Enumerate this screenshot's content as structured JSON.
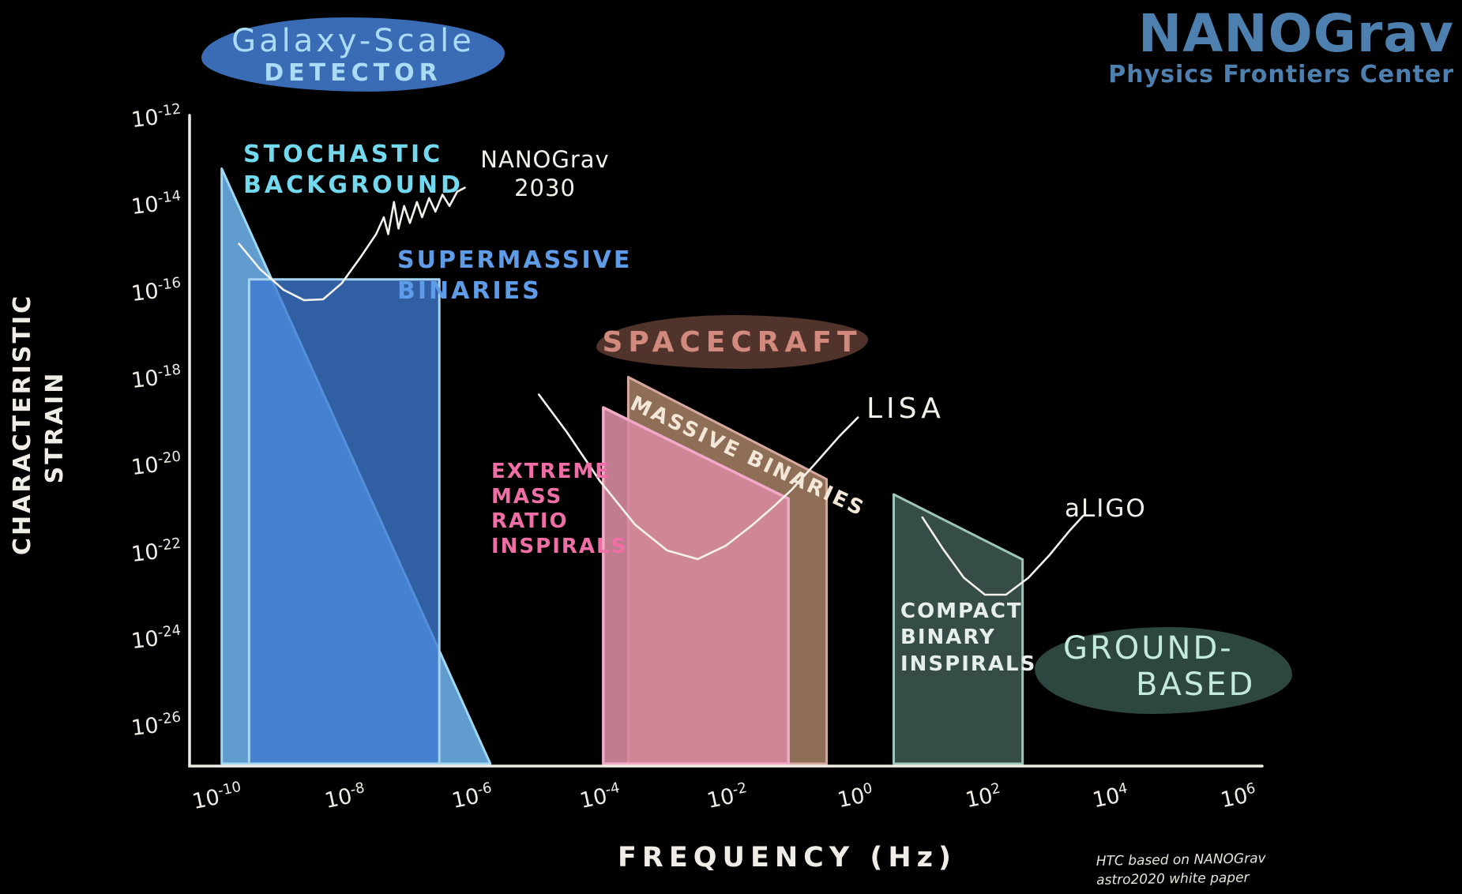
{
  "logo": {
    "title": "NANOGrav",
    "subtitle": "Physics Frontiers Center"
  },
  "labels": {
    "galaxy_scale_line1": "Galaxy-Scale",
    "galaxy_scale_line2": "DETECTOR",
    "stochastic_background": "STOCHASTIC\nBACKGROUND",
    "nanograv_2030": "NANOGrav\n2030",
    "supermassive_binaries": "SUPERMASSIVE\nBINARIES",
    "spacecraft": "SPACECRAFT",
    "massive_binaries": "MASSIVE BINARIES",
    "emri": "EXTREME\nMASS\nRATIO\nINSPIRALS",
    "lisa": "LISA",
    "aligo": "aLIGO",
    "compact_binary_inspirals": "COMPACT\nBINARY\nINSPIRALS",
    "ground_based_line1": "GROUND-",
    "ground_based_line2": "BASED",
    "ylabel": "CHARACTERISTIC\nSTRAIN",
    "xlabel": "FREQUENCY (Hz)",
    "credit": "HTC based on NANOGrav\nastro2020 white paper"
  },
  "chart_data": {
    "type": "area",
    "title": "Gravitational wave detector sensitivity: characteristic strain vs frequency",
    "xlabel": "FREQUENCY (Hz)",
    "ylabel": "CHARACTERISTIC STRAIN",
    "x_scale": "log",
    "y_scale": "log",
    "xlim_log": [
      -10,
      6
    ],
    "ylim_log": [
      -26.8,
      -12
    ],
    "grid": false,
    "x_tick_exponents": [
      -10,
      -8,
      -6,
      -4,
      -2,
      0,
      2,
      4,
      6
    ],
    "y_tick_exponents": [
      -12,
      -14,
      -16,
      -18,
      -20,
      -22,
      -24,
      -26
    ],
    "regions": [
      {
        "name": "stochastic-background",
        "label": "STOCHASTIC BACKGROUND",
        "detector_group": "Galaxy-Scale Detector",
        "fill": "#68a9e0",
        "fill_opacity": 0.92,
        "stroke": "#9fd8f2",
        "stroke_width": 3,
        "points": [
          [
            -9.93,
            -13.1
          ],
          [
            -5.72,
            -26.8
          ],
          [
            -9.93,
            -26.8
          ]
        ]
      },
      {
        "name": "supermassive-binaries",
        "label": "SUPERMASSIVE BINARIES",
        "detector_group": "Galaxy-Scale Detector",
        "fill": "#3f7ad2",
        "fill_opacity": 0.78,
        "stroke": "#a6d3f0",
        "stroke_width": 3,
        "points": [
          [
            -9.5,
            -15.65
          ],
          [
            -6.52,
            -15.65
          ],
          [
            -6.52,
            -26.8
          ],
          [
            -9.5,
            -26.8
          ]
        ]
      },
      {
        "name": "massive-binaries",
        "label": "MASSIVE BINARIES",
        "detector_group": "Spacecraft",
        "fill": "#97745c",
        "fill_opacity": 0.95,
        "stroke": "#d6a9a0",
        "stroke_width": 3,
        "points": [
          [
            -3.56,
            -17.9
          ],
          [
            -0.45,
            -20.25
          ],
          [
            -0.45,
            -26.8
          ],
          [
            -3.56,
            -26.8
          ]
        ]
      },
      {
        "name": "extreme-mass-ratio-inspirals",
        "label": "EXTREME MASS RATIO INSPIRALS",
        "detector_group": "Spacecraft",
        "fill": "#d6899e",
        "fill_opacity": 0.9,
        "stroke": "#f0a9c6",
        "stroke_width": 3.5,
        "points": [
          [
            -3.95,
            -18.6
          ],
          [
            -1.05,
            -20.7
          ],
          [
            -1.05,
            -26.8
          ],
          [
            -3.95,
            -26.8
          ]
        ]
      },
      {
        "name": "compact-binary-inspirals",
        "label": "COMPACT BINARY INSPIRALS",
        "detector_group": "Ground-Based",
        "fill": "#374f48",
        "fill_opacity": 0.97,
        "stroke": "#9ec6bb",
        "stroke_width": 3,
        "points": [
          [
            0.6,
            -20.6
          ],
          [
            2.62,
            -22.1
          ],
          [
            2.62,
            -26.8
          ],
          [
            0.6,
            -26.8
          ]
        ]
      }
    ],
    "curves": [
      {
        "name": "nanograv-2030",
        "label": "NANOGrav 2030",
        "color": "#f2f2ea",
        "points": [
          [
            -9.66,
            -14.83
          ],
          [
            -9.33,
            -15.41
          ],
          [
            -8.96,
            -15.89
          ],
          [
            -8.64,
            -16.13
          ],
          [
            -8.34,
            -16.11
          ],
          [
            -8.05,
            -15.74
          ],
          [
            -7.75,
            -15.13
          ],
          [
            -7.51,
            -14.61
          ],
          [
            -7.39,
            -14.22
          ],
          [
            -7.32,
            -14.61
          ],
          [
            -7.23,
            -13.87
          ],
          [
            -7.16,
            -14.48
          ],
          [
            -7.07,
            -13.96
          ],
          [
            -6.98,
            -14.35
          ],
          [
            -6.87,
            -13.87
          ],
          [
            -6.79,
            -14.22
          ],
          [
            -6.68,
            -13.78
          ],
          [
            -6.58,
            -14.09
          ],
          [
            -6.47,
            -13.7
          ],
          [
            -6.36,
            -13.96
          ],
          [
            -6.24,
            -13.63
          ],
          [
            -6.12,
            -13.54
          ]
        ]
      },
      {
        "name": "lisa",
        "label": "LISA",
        "color": "#f2f2ea",
        "points": [
          [
            -4.96,
            -18.3
          ],
          [
            -4.52,
            -19.17
          ],
          [
            -4.0,
            -20.3
          ],
          [
            -3.45,
            -21.3
          ],
          [
            -2.95,
            -21.89
          ],
          [
            -2.47,
            -22.09
          ],
          [
            -2.03,
            -21.78
          ],
          [
            -1.61,
            -21.3
          ],
          [
            -1.26,
            -20.85
          ],
          [
            -0.99,
            -20.48
          ],
          [
            -0.64,
            -19.91
          ],
          [
            -0.25,
            -19.26
          ],
          [
            0.04,
            -18.83
          ]
        ]
      },
      {
        "name": "aligo",
        "label": "aLIGO",
        "color": "#f2f2ea",
        "points": [
          [
            1.05,
            -21.13
          ],
          [
            1.38,
            -21.87
          ],
          [
            1.7,
            -22.52
          ],
          [
            2.03,
            -22.91
          ],
          [
            2.36,
            -22.91
          ],
          [
            2.71,
            -22.52
          ],
          [
            3.04,
            -22.0
          ],
          [
            3.36,
            -21.43
          ],
          [
            3.57,
            -21.09
          ]
        ]
      }
    ]
  },
  "colors": {
    "background": "#000000",
    "axis": "#f0ede6",
    "logo_blue": "#4d80ae",
    "cyan_text": "#72d9ee",
    "blue_text": "#5f9ce8",
    "pink_text": "#ef6ea6",
    "galaxy_blob": "#3a6bb5",
    "spacecraft_blob": "#50332a",
    "ground_blob": "#2d4740"
  }
}
